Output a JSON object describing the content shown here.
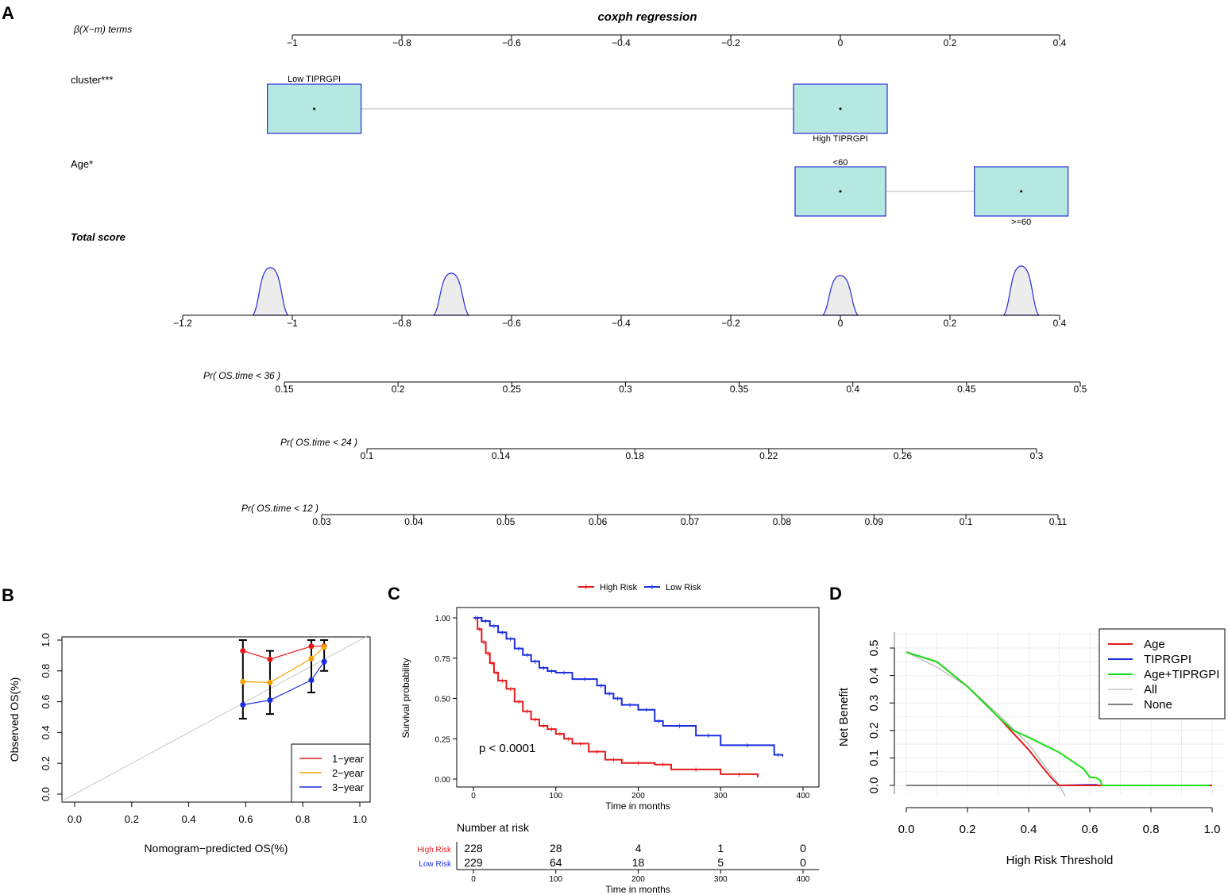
{
  "colors": {
    "box_fill": "#b4e8e0",
    "box_stroke": "#2a2ad8",
    "curve_stroke": "#2a2ad8",
    "curve_fill": "#ececec",
    "red": "#e41a1c",
    "orange": "#f5a300",
    "blue": "#1a2ee0",
    "green": "#19e019",
    "grey": "#a8a8a8",
    "black": "#000000"
  },
  "panel_a": {
    "letter": "A",
    "title": "coxph regression",
    "axis_label": "β(X−m) terms",
    "top_axis_ticks": [
      "−1",
      "−0.8",
      "−0.6",
      "−0.4",
      "−0.2",
      "0",
      "0.2",
      "0.4"
    ],
    "score_axis_ticks": [
      "−1.2",
      "−1",
      "−0.8",
      "−0.6",
      "−0.4",
      "−0.2",
      "0",
      "0.2",
      "0.4"
    ],
    "cluster": {
      "label": "cluster***",
      "levels": [
        {
          "name": "Low TIPRGPI",
          "beta": -0.96
        },
        {
          "name": "High TIPRGPI",
          "beta": 0.0
        }
      ]
    },
    "age": {
      "label": "Age*",
      "levels": [
        {
          "name": "<60",
          "beta": 0.0
        },
        {
          "name": ">=60",
          "beta": 0.33
        }
      ]
    },
    "total_score": {
      "label": "Total score",
      "peaks_at": [
        -1.04,
        -0.71,
        0.0,
        0.33
      ]
    },
    "prob_axes": [
      {
        "label": "Pr( OS.time < 36 )",
        "ticks": [
          "0.15",
          "0.2",
          "0.25",
          "0.3",
          "0.35",
          "0.4",
          "0.45",
          "0.5"
        ]
      },
      {
        "label": "Pr( OS.time < 24 )",
        "ticks": [
          "0.1",
          "0.14",
          "0.18",
          "0.22",
          "0.26",
          "0.3"
        ]
      },
      {
        "label": "Pr( OS.time < 12 )",
        "ticks": [
          "0.03",
          "0.04",
          "0.05",
          "0.06",
          "0.07",
          "0.08",
          "0.09",
          "0.1",
          "0.11"
        ]
      }
    ]
  },
  "panel_b": {
    "letter": "B",
    "xlabel": "Nomogram−predicted OS(%)",
    "ylabel": "Observed OS(%)",
    "xticks": [
      "0.0",
      "0.2",
      "0.4",
      "0.6",
      "0.8",
      "1.0"
    ],
    "yticks": [
      "0.0",
      "0.2",
      "0.4",
      "0.6",
      "0.8",
      "1.0"
    ],
    "legend": [
      "1−year",
      "2−year",
      "3−year"
    ]
  },
  "panel_c": {
    "letter": "C",
    "legend": [
      "High Risk",
      "Low Risk"
    ],
    "ylabel": "Survival probability",
    "xlabel": "Time in months",
    "xticks": [
      "0",
      "100",
      "200",
      "300",
      "400"
    ],
    "yticks": [
      "0.00",
      "0.25",
      "0.50",
      "0.75",
      "1.00"
    ],
    "pvalue": "p < 0.0001",
    "risk_title": "Number at risk",
    "risk_rows": [
      {
        "label": "High Risk",
        "values": [
          "228",
          "28",
          "4",
          "1",
          "0"
        ]
      },
      {
        "label": "Low Risk",
        "values": [
          "229",
          "64",
          "18",
          "5",
          "0"
        ]
      }
    ],
    "risk_xlabel": "Time in months"
  },
  "panel_d": {
    "letter": "D",
    "xlabel": "High Risk Threshold",
    "ylabel": "Net Benefit",
    "xticks": [
      "0.0",
      "0.2",
      "0.4",
      "0.6",
      "0.8",
      "1.0"
    ],
    "yticks": [
      "0.0",
      "0.1",
      "0.2",
      "0.3",
      "0.4",
      "0.5"
    ],
    "legend": [
      "Age",
      "TIPRGPI",
      "Age+TIPRGPI",
      "All",
      "None"
    ]
  },
  "chart_data": [
    {
      "type": "line",
      "panel": "B",
      "title": "",
      "xlabel": "Nomogram−predicted OS(%)",
      "ylabel": "Observed OS(%)",
      "xlim": [
        0,
        1
      ],
      "ylim": [
        0,
        1
      ],
      "series": [
        {
          "name": "1−year",
          "x": [
            0.59,
            0.685,
            0.83,
            0.875
          ],
          "y": [
            0.93,
            0.875,
            0.96,
            0.96
          ]
        },
        {
          "name": "2−year",
          "x": [
            0.59,
            0.685,
            0.83,
            0.875
          ],
          "y": [
            0.73,
            0.725,
            0.88,
            0.955
          ]
        },
        {
          "name": "3−year",
          "x": [
            0.59,
            0.685,
            0.83,
            0.875
          ],
          "y": [
            0.58,
            0.61,
            0.74,
            0.86
          ]
        }
      ],
      "error_bars": [
        {
          "x": 0.59,
          "low": 0.49,
          "high": 1.0
        },
        {
          "x": 0.685,
          "low": 0.52,
          "high": 0.93
        },
        {
          "x": 0.83,
          "low": 0.66,
          "high": 1.0
        },
        {
          "x": 0.875,
          "low": 0.8,
          "high": 1.0
        }
      ]
    },
    {
      "type": "line",
      "panel": "C",
      "title": "",
      "xlabel": "Time in months",
      "ylabel": "Survival probability",
      "xlim": [
        0,
        400
      ],
      "ylim": [
        0,
        1
      ],
      "series": [
        {
          "name": "High Risk",
          "x": [
            0,
            5,
            10,
            15,
            20,
            25,
            30,
            40,
            50,
            60,
            70,
            80,
            90,
            100,
            110,
            120,
            140,
            160,
            180,
            220,
            240,
            300,
            345
          ],
          "y": [
            1.0,
            0.93,
            0.85,
            0.78,
            0.72,
            0.66,
            0.61,
            0.56,
            0.48,
            0.42,
            0.37,
            0.33,
            0.31,
            0.28,
            0.25,
            0.22,
            0.17,
            0.12,
            0.1,
            0.09,
            0.06,
            0.03,
            0.01
          ]
        },
        {
          "name": "Low Risk",
          "x": [
            0,
            10,
            20,
            30,
            40,
            50,
            60,
            70,
            80,
            90,
            100,
            120,
            150,
            160,
            170,
            180,
            200,
            220,
            230,
            270,
            300,
            365,
            375
          ],
          "y": [
            1.0,
            0.98,
            0.95,
            0.91,
            0.87,
            0.81,
            0.77,
            0.73,
            0.69,
            0.67,
            0.66,
            0.62,
            0.58,
            0.53,
            0.5,
            0.46,
            0.43,
            0.36,
            0.33,
            0.27,
            0.21,
            0.15,
            0.14
          ]
        }
      ],
      "annotation": "p < 0.0001"
    },
    {
      "type": "line",
      "panel": "D",
      "title": "",
      "xlabel": "High Risk Threshold",
      "ylabel": "Net Benefit",
      "xlim": [
        0,
        1
      ],
      "ylim": [
        0,
        0.5
      ],
      "series": [
        {
          "name": "Age",
          "x": [
            0.0,
            0.1,
            0.2,
            0.3,
            0.35,
            0.4,
            0.45,
            0.48,
            0.5,
            1.0
          ],
          "y": [
            0.485,
            0.45,
            0.36,
            0.25,
            0.19,
            0.13,
            0.06,
            0.02,
            0.0,
            0.0
          ]
        },
        {
          "name": "TIPRGPI",
          "x": [
            0.5,
            0.6,
            0.62,
            0.63,
            1.0
          ],
          "y": [
            0.0,
            0.002,
            0.002,
            0.0,
            0.0
          ]
        },
        {
          "name": "Age+TIPRGPI",
          "x": [
            0.0,
            0.1,
            0.2,
            0.3,
            0.35,
            0.4,
            0.5,
            0.58,
            0.6,
            0.62,
            0.635,
            0.64,
            0.99
          ],
          "y": [
            0.485,
            0.45,
            0.36,
            0.25,
            0.2,
            0.175,
            0.12,
            0.06,
            0.03,
            0.028,
            0.018,
            0.0,
            0.0
          ]
        },
        {
          "name": "All",
          "x": [
            0.0,
            0.1,
            0.2,
            0.3,
            0.4,
            0.5,
            0.52
          ],
          "y": [
            0.485,
            0.43,
            0.36,
            0.26,
            0.15,
            0.0,
            -0.04
          ]
        },
        {
          "name": "None",
          "x": [
            0.0,
            1.0
          ],
          "y": [
            0.0,
            0.0
          ]
        }
      ]
    }
  ]
}
